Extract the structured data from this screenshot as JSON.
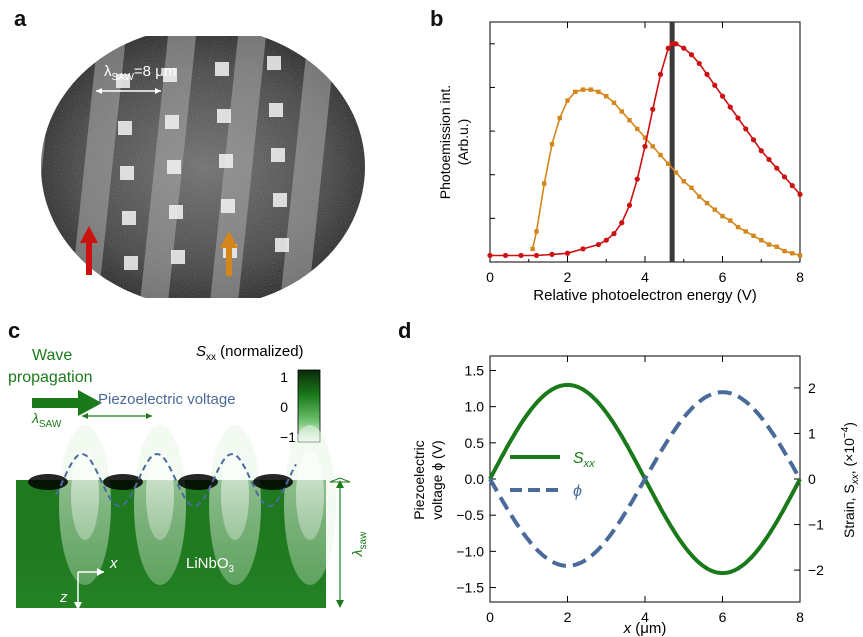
{
  "panels": {
    "a": {
      "letter": "a",
      "scale_label": "λSAW=8 μm",
      "scale_sym": "λ",
      "scale_sub": "SAW",
      "scale_rest": "=8 μm",
      "arrow_colors": {
        "red": "#cc1111",
        "orange": "#d4861a"
      }
    },
    "b": {
      "letter": "b",
      "ylabel_line1": "Photoemission int.",
      "ylabel_line2": "(Arb.u.)",
      "xlabel": "Relative photoelectron energy (V)"
    },
    "c": {
      "letter": "c",
      "wave_line1": "Wave",
      "wave_line2": "propagation",
      "colorbar_title_sym": "S",
      "colorbar_title_sub": "xx",
      "colorbar_title_rest": " (normalized)",
      "colorbar_ticks": [
        "1",
        "0",
        "−1"
      ],
      "piezo_label": "Piezoelectric voltage",
      "lambda_sym": "λ",
      "lambda_sub": "SAW",
      "lambda_right_sub": "saw",
      "material_main": "LiNbO",
      "material_sub": "3",
      "axis_x": "x",
      "axis_z": "z",
      "colors": {
        "green": "#1a7a1a",
        "dashed": "#4a6a9a"
      }
    },
    "d": {
      "letter": "d",
      "ylabel_left_line1": "Piezoelectric",
      "ylabel_left_line2": "voltage ϕ (V)",
      "ylabel_right": "Strain, Sxx, (×10−4)",
      "ylabel_right_a": "Strain, S",
      "ylabel_right_sub": "xx",
      "ylabel_right_b": ", (×10",
      "ylabel_right_sup": "−4",
      "ylabel_right_c": ")",
      "xlabel_sym": "x",
      "xlabel_rest": " (μm)",
      "legend_sxx_sym": "S",
      "legend_sxx_sub": "xx",
      "legend_phi": "ϕ"
    }
  },
  "chart_data": [
    {
      "type": "line",
      "panel": "b",
      "xlabel": "Relative photoelectron energy (V)",
      "ylabel": "Photoemission int. (Arb.u.)",
      "xlim": [
        0,
        8
      ],
      "ylim": [
        0,
        1.1
      ],
      "x_ticks": [
        "0",
        "2",
        "4",
        "6",
        "8"
      ],
      "grid": false,
      "series": [
        {
          "color": "#d4861a",
          "marker": "square",
          "x": [
            0.0,
            0.5,
            1.0,
            1.1,
            1.2,
            1.4,
            1.6,
            1.8,
            2.0,
            2.2,
            2.4,
            2.6,
            2.8,
            3.0,
            3.2,
            3.4,
            3.6,
            3.8,
            4.0,
            4.2,
            4.4,
            4.6,
            4.8,
            5.0,
            5.2,
            5.4,
            5.6,
            5.8,
            6.0,
            6.2,
            6.4,
            6.6,
            6.8,
            7.0,
            7.2,
            7.4,
            7.6,
            7.8,
            8.0
          ],
          "y": [
            null,
            null,
            null,
            0.06,
            0.14,
            0.36,
            0.54,
            0.66,
            0.74,
            0.78,
            0.79,
            0.79,
            0.78,
            0.76,
            0.73,
            0.69,
            0.65,
            0.61,
            0.57,
            0.53,
            0.49,
            0.45,
            0.41,
            0.37,
            0.34,
            0.3,
            0.27,
            0.24,
            0.21,
            0.19,
            0.16,
            0.14,
            0.12,
            0.1,
            0.08,
            0.07,
            0.05,
            0.04,
            0.03
          ]
        },
        {
          "color": "#cc1111",
          "marker": "circle",
          "x": [
            0.0,
            0.4,
            0.8,
            1.2,
            1.6,
            2.0,
            2.4,
            2.8,
            3.0,
            3.2,
            3.4,
            3.6,
            3.8,
            4.0,
            4.2,
            4.4,
            4.6,
            4.7,
            4.8,
            5.0,
            5.2,
            5.4,
            5.6,
            5.8,
            6.0,
            6.2,
            6.4,
            6.6,
            6.8,
            7.0,
            7.2,
            7.4,
            7.6,
            7.8,
            8.0
          ],
          "y": [
            0.03,
            0.03,
            0.03,
            0.03,
            0.035,
            0.04,
            0.06,
            0.08,
            0.1,
            0.13,
            0.18,
            0.26,
            0.38,
            0.53,
            0.7,
            0.86,
            0.98,
            1.0,
            1.0,
            0.98,
            0.95,
            0.91,
            0.86,
            0.81,
            0.76,
            0.71,
            0.66,
            0.61,
            0.56,
            0.51,
            0.47,
            0.43,
            0.39,
            0.35,
            0.31
          ]
        }
      ],
      "vertical_line_x": 4.7
    },
    {
      "type": "line",
      "panel": "d",
      "xlabel": "x (μm)",
      "ylabel": "Piezoelectric voltage ϕ (V)",
      "y2label": "Strain, Sxx, (×10−4)",
      "xlim": [
        0,
        8
      ],
      "ylim": [
        -1.7,
        1.7
      ],
      "y2lim": [
        -2.7,
        2.7
      ],
      "x_ticks": [
        "0",
        "2",
        "4",
        "6",
        "8"
      ],
      "y_ticks": [
        "1.5",
        "1.0",
        "0.5",
        "0.0",
        "−0.5",
        "−1.0",
        "−1.5"
      ],
      "y2_ticks": [
        "2",
        "1",
        "0",
        "−1",
        "−2"
      ],
      "grid": false,
      "legend": "center-left",
      "series": [
        {
          "name": "Sxx",
          "color": "#1a7a1a",
          "style": "solid",
          "axis": "left",
          "amplitude": 1.3,
          "form": "sin",
          "wavelength": 8
        },
        {
          "name": "ϕ",
          "color": "#4a6a9a",
          "style": "dashed",
          "axis": "left",
          "amplitude": -1.2,
          "form": "sin",
          "wavelength": 8
        }
      ]
    }
  ]
}
